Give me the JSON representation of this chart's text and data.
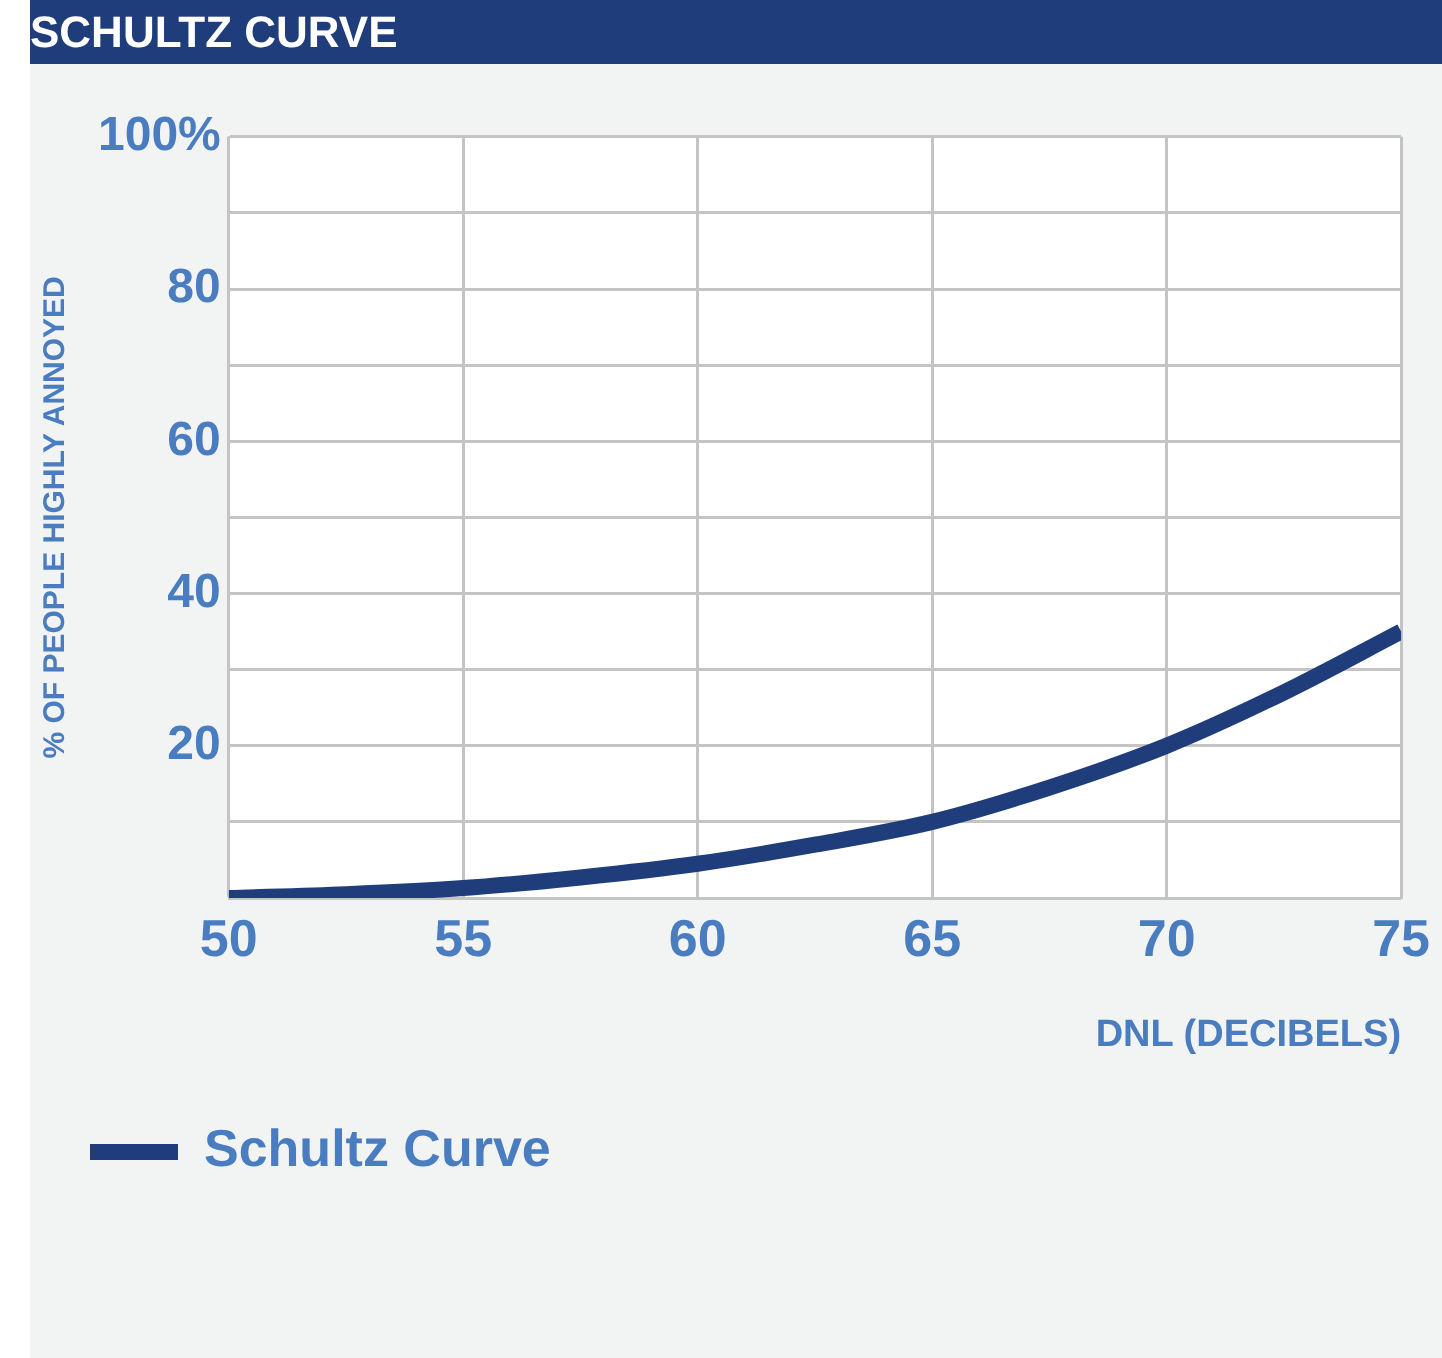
{
  "chart_data": {
    "type": "line",
    "title": "SCHULTZ CURVE",
    "xlabel": "DNL (DECIBELS)",
    "ylabel": "% OF PEOPLE HIGHLY ANNOYED",
    "x": [
      50,
      52.5,
      55,
      57.5,
      60,
      62.5,
      65,
      67.5,
      70,
      72.5,
      75
    ],
    "series": [
      {
        "name": "Schultz Curve",
        "color": "#1f3d7a",
        "values": [
          0,
          0.5,
          1.3,
          2.7,
          4.5,
          7,
          10,
          14.5,
          20,
          27,
          35
        ]
      }
    ],
    "xlim": [
      50,
      75
    ],
    "xticks": [
      50,
      55,
      60,
      65,
      70,
      75
    ],
    "ylim": [
      0,
      100
    ],
    "yticks": [
      {
        "value": 0,
        "label": null
      },
      {
        "value": 10,
        "label": null
      },
      20,
      {
        "value": 30,
        "label": null
      },
      40,
      {
        "value": 50,
        "label": null
      },
      60,
      {
        "value": 70,
        "label": null
      },
      80,
      {
        "value": 90,
        "label": null
      },
      {
        "value": 100,
        "label": "100%"
      }
    ],
    "grid": true,
    "legend": "bottom left",
    "marker": "none",
    "line_style": "solid"
  }
}
